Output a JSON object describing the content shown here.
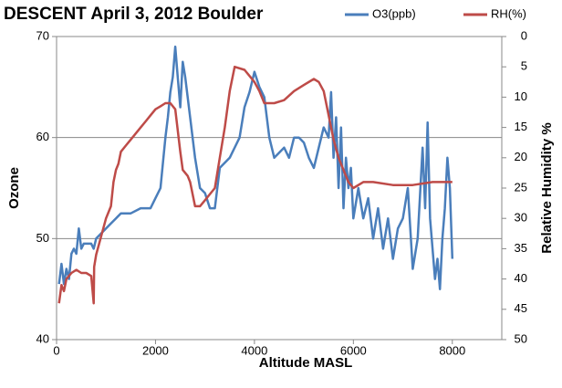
{
  "chart_data": {
    "type": "line",
    "title": "DESCENT April 3, 2012  Boulder",
    "xlabel": "Altitude MASL",
    "ylabel": "Ozone",
    "y2label": "Relative Humidity %",
    "xlim": [
      0,
      9000
    ],
    "xticks": [
      0,
      2000,
      4000,
      6000,
      8000
    ],
    "ylim": [
      40,
      70
    ],
    "yticks": [
      40,
      50,
      60,
      70
    ],
    "y2lim": [
      50,
      0
    ],
    "y2ticks": [
      0,
      5,
      10,
      15,
      20,
      25,
      30,
      35,
      40,
      45,
      50
    ],
    "grid": true,
    "legend": "top-right",
    "series": [
      {
        "name": "O3(ppb)",
        "color": "#4a7ebb",
        "axis": "y",
        "x": [
          50,
          100,
          150,
          200,
          250,
          300,
          350,
          400,
          450,
          500,
          550,
          600,
          700,
          750,
          800,
          900,
          1000,
          1100,
          1200,
          1300,
          1500,
          1700,
          1900,
          2000,
          2100,
          2150,
          2200,
          2250,
          2300,
          2350,
          2400,
          2450,
          2500,
          2550,
          2600,
          2700,
          2750,
          2800,
          2900,
          3000,
          3100,
          3200,
          3300,
          3500,
          3700,
          3800,
          3900,
          4000,
          4100,
          4200,
          4300,
          4400,
          4500,
          4600,
          4700,
          4800,
          4900,
          5000,
          5100,
          5200,
          5300,
          5400,
          5500,
          5550,
          5600,
          5650,
          5700,
          5750,
          5800,
          5850,
          5900,
          5950,
          6000,
          6100,
          6200,
          6300,
          6400,
          6500,
          6600,
          6700,
          6800,
          6900,
          7000,
          7100,
          7200,
          7300,
          7400,
          7450,
          7500,
          7550,
          7600,
          7650,
          7700,
          7750,
          7800,
          7850,
          7900,
          7950,
          8000
        ],
        "values": [
          45.5,
          47.5,
          45.5,
          47,
          46,
          48.5,
          49,
          48.5,
          51,
          49,
          49.5,
          49.5,
          49.5,
          49,
          50,
          50.5,
          51,
          51.5,
          52,
          52.5,
          52.5,
          53,
          53,
          54,
          55,
          57.5,
          60,
          62,
          64.5,
          66,
          69,
          66,
          63,
          67.5,
          66,
          62,
          60,
          58,
          55,
          54.5,
          53,
          53,
          57,
          58,
          60,
          63,
          64.5,
          66.5,
          65,
          64,
          60,
          58,
          58.5,
          59,
          58,
          60,
          60,
          59.5,
          58,
          57,
          59,
          61,
          60,
          64.5,
          58,
          62,
          55,
          61,
          53,
          58,
          55,
          57,
          52,
          55,
          52,
          54,
          50,
          53,
          49,
          52,
          48,
          51,
          52,
          55,
          47,
          50,
          59,
          53,
          61.5,
          52,
          49,
          46,
          48,
          45,
          50,
          53,
          58,
          55,
          48
        ]
      },
      {
        "name": "RH(%)",
        "color": "#be4b48",
        "axis": "y2",
        "x": [
          50,
          100,
          150,
          200,
          300,
          400,
          500,
          600,
          700,
          750,
          760,
          800,
          900,
          1000,
          1100,
          1150,
          1200,
          1250,
          1300,
          1400,
          1500,
          1600,
          1700,
          1800,
          1900,
          2000,
          2100,
          2200,
          2300,
          2400,
          2500,
          2550,
          2650,
          2700,
          2800,
          2900,
          3000,
          3100,
          3200,
          3300,
          3400,
          3500,
          3600,
          3800,
          3900,
          4000,
          4100,
          4200,
          4400,
          4600,
          4800,
          5000,
          5200,
          5300,
          5400,
          5500,
          5600,
          5700,
          5800,
          5900,
          6000,
          6200,
          6400,
          6800,
          7200,
          7600,
          8000
        ],
        "values": [
          44,
          41,
          42,
          40,
          39,
          38.5,
          39,
          39,
          39.5,
          44,
          38,
          36,
          33,
          30,
          28,
          24,
          22,
          21,
          19,
          18,
          17,
          16,
          15,
          14,
          13,
          12,
          11.5,
          11,
          11,
          12,
          19,
          22,
          23,
          24,
          28,
          28,
          27,
          26,
          25,
          20,
          15,
          9,
          5,
          5.5,
          6.5,
          7.5,
          9,
          11,
          11,
          10.5,
          9,
          8,
          7,
          7.5,
          9,
          13,
          17,
          20,
          22,
          24,
          25,
          24,
          24,
          24.5,
          24.5,
          24,
          24
        ]
      }
    ]
  }
}
